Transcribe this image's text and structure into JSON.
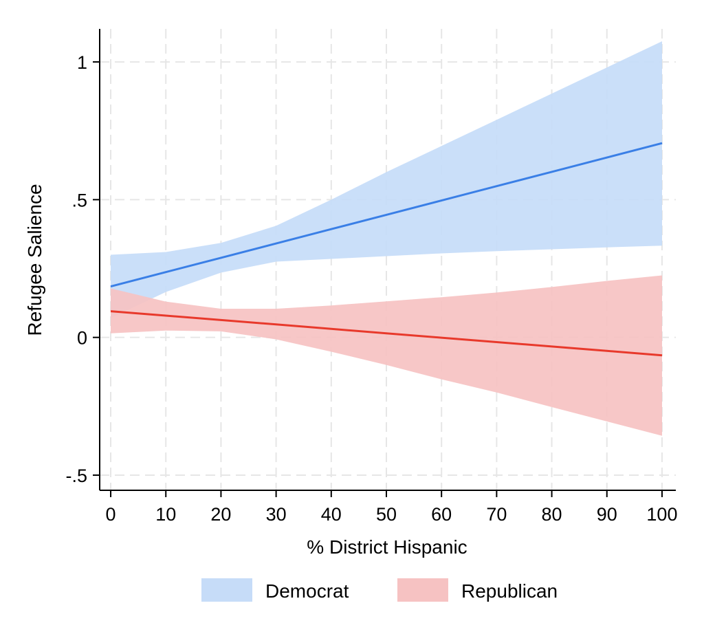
{
  "chart_data": {
    "type": "line",
    "title": "",
    "xlabel": "% District Hispanic",
    "ylabel": "Refugee Salience",
    "xlim": [
      -2,
      102.5
    ],
    "ylim": [
      -0.555,
      1.12
    ],
    "x_ticks": [
      0,
      10,
      20,
      30,
      40,
      50,
      60,
      70,
      80,
      90,
      100
    ],
    "x_tick_labels": [
      "0",
      "10",
      "20",
      "30",
      "40",
      "50",
      "60",
      "70",
      "80",
      "90",
      "100"
    ],
    "y_ticks": [
      -0.5,
      0,
      0.5,
      1
    ],
    "y_tick_labels": [
      "-.5",
      "0",
      ".5",
      "1"
    ],
    "grid": true,
    "legend_position": "bottom",
    "series": [
      {
        "name": "Democrat",
        "color": "#3a7fe6",
        "band_color": "#c6dcf8",
        "x": [
          0,
          10,
          20,
          30,
          40,
          50,
          60,
          70,
          80,
          90,
          100
        ],
        "y": [
          0.185,
          0.237,
          0.289,
          0.341,
          0.393,
          0.445,
          0.497,
          0.549,
          0.601,
          0.653,
          0.705
        ],
        "ci_low": [
          0.07,
          0.165,
          0.235,
          0.275,
          0.285,
          0.295,
          0.305,
          0.313,
          0.32,
          0.327,
          0.333
        ],
        "ci_high": [
          0.3,
          0.31,
          0.343,
          0.405,
          0.5,
          0.6,
          0.695,
          0.79,
          0.885,
          0.98,
          1.075
        ]
      },
      {
        "name": "Republican",
        "color": "#e8392b",
        "band_color": "#f6c2c2",
        "x": [
          0,
          10,
          20,
          30,
          40,
          50,
          60,
          70,
          80,
          90,
          100
        ],
        "y": [
          0.095,
          0.079,
          0.063,
          0.047,
          0.031,
          0.015,
          -0.001,
          -0.017,
          -0.033,
          -0.049,
          -0.065
        ],
        "ci_low": [
          0.015,
          0.025,
          0.022,
          -0.007,
          -0.052,
          -0.1,
          -0.152,
          -0.2,
          -0.253,
          -0.305,
          -0.357
        ],
        "ci_high": [
          0.178,
          0.13,
          0.104,
          0.104,
          0.116,
          0.131,
          0.146,
          0.163,
          0.183,
          0.205,
          0.225
        ]
      }
    ]
  }
}
